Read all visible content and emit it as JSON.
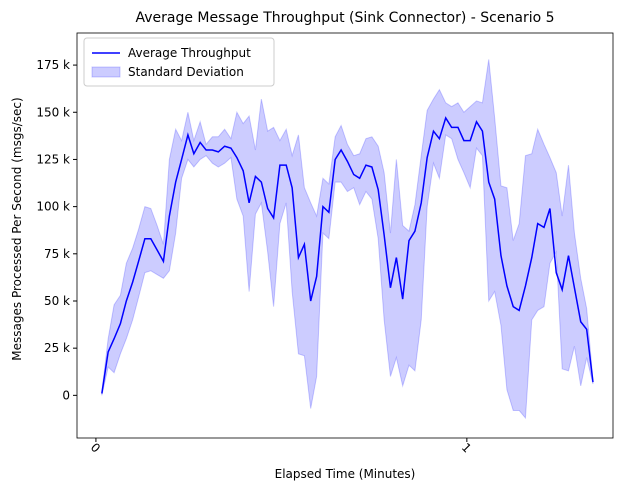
{
  "chart_data": {
    "type": "line_band",
    "title": "Average Message Throughput (Sink Connector) - Scenario 5",
    "x_label": "Elapsed Time (Minutes)",
    "y_label": "Messages Processed Per Second (msgs/sec)",
    "x": [
      0.016,
      0.033,
      0.049,
      0.066,
      0.082,
      0.099,
      0.115,
      0.132,
      0.148,
      0.165,
      0.182,
      0.198,
      0.215,
      0.231,
      0.248,
      0.264,
      0.281,
      0.297,
      0.314,
      0.33,
      0.347,
      0.364,
      0.38,
      0.397,
      0.413,
      0.43,
      0.446,
      0.463,
      0.479,
      0.496,
      0.513,
      0.529,
      0.546,
      0.562,
      0.579,
      0.595,
      0.612,
      0.628,
      0.645,
      0.661,
      0.678,
      0.695,
      0.711,
      0.728,
      0.744,
      0.761,
      0.777,
      0.794,
      0.81,
      0.827,
      0.844,
      0.86,
      0.877,
      0.893,
      0.91,
      0.926,
      0.943,
      0.959,
      0.976,
      0.992,
      1.009,
      1.026,
      1.042,
      1.059,
      1.075,
      1.092,
      1.108,
      1.125,
      1.141,
      1.158,
      1.175,
      1.191,
      1.208,
      1.224,
      1.241,
      1.257,
      1.274,
      1.29,
      1.307,
      1.323,
      1.34
    ],
    "series": [
      {
        "name": "Average Throughput",
        "color": "#0000ff",
        "values": [
          1000,
          23000,
          30000,
          38000,
          50000,
          60000,
          71000,
          83000,
          83000,
          77000,
          71000,
          95000,
          113000,
          125000,
          138000,
          128000,
          134000,
          130000,
          130000,
          129000,
          132000,
          131000,
          126000,
          119000,
          102000,
          116000,
          113000,
          99000,
          94000,
          122000,
          122000,
          110000,
          73000,
          80000,
          50000,
          63000,
          100000,
          97000,
          125000,
          130000,
          124000,
          117000,
          115000,
          122000,
          121000,
          109000,
          85000,
          57000,
          73000,
          51000,
          82000,
          87000,
          102000,
          126000,
          140000,
          136000,
          147000,
          142000,
          142000,
          135000,
          135000,
          145000,
          140000,
          113000,
          104000,
          74000,
          58000,
          47000,
          45000,
          58000,
          73000,
          91000,
          89000,
          99000,
          65000,
          56000,
          74000,
          57000,
          39000,
          35000,
          7000
        ]
      },
      {
        "name": "Standard Deviation",
        "color": "#0000ff",
        "upper": [
          2000,
          30000,
          48000,
          53000,
          70000,
          78000,
          88000,
          100000,
          99000,
          90000,
          80000,
          125000,
          141000,
          135000,
          150000,
          135000,
          145000,
          133000,
          137000,
          137000,
          141000,
          136000,
          150000,
          144000,
          148000,
          130000,
          157000,
          140000,
          142000,
          135000,
          141000,
          127000,
          138000,
          110000,
          102000,
          95000,
          115000,
          112000,
          137000,
          143000,
          133000,
          127000,
          128000,
          136000,
          137000,
          132000,
          118000,
          86000,
          125000,
          90000,
          87000,
          101000,
          127000,
          151000,
          157000,
          162000,
          155000,
          153000,
          155000,
          150000,
          153000,
          156000,
          155000,
          178000,
          147000,
          111000,
          110000,
          82000,
          91000,
          127000,
          128000,
          141000,
          133000,
          126000,
          118000,
          95000,
          122000,
          86000,
          62000,
          46000,
          8000
        ],
        "lower": [
          0,
          15000,
          12000,
          22000,
          30000,
          40000,
          52000,
          65000,
          66000,
          64000,
          62000,
          66000,
          86000,
          115000,
          125000,
          121000,
          125000,
          127000,
          123000,
          121000,
          123000,
          126000,
          104000,
          95000,
          55000,
          96000,
          102000,
          76000,
          47000,
          91000,
          102000,
          55000,
          22000,
          21000,
          -7000,
          10000,
          86000,
          83000,
          113000,
          113000,
          108000,
          110000,
          101000,
          108000,
          104000,
          83000,
          40000,
          10000,
          20000,
          5000,
          16000,
          13000,
          40000,
          100000,
          123000,
          115000,
          138000,
          136000,
          125000,
          118000,
          110000,
          131000,
          127000,
          50000,
          55000,
          37000,
          3000,
          -8000,
          -8000,
          -12000,
          40000,
          45000,
          47000,
          70000,
          76000,
          14000,
          13000,
          26000,
          5000,
          20000,
          6000
        ]
      }
    ],
    "xlim": [
      -0.051,
      1.394
    ],
    "ylim": [
      -22600,
      192000
    ],
    "xticks": [
      0,
      1
    ],
    "yticks": [
      0,
      {
        "value": 25000,
        "label": "25 k"
      },
      {
        "value": 50000,
        "label": "50 k"
      },
      {
        "value": 75000,
        "label": "75 k"
      },
      {
        "value": 100000,
        "label": "100 k"
      },
      {
        "value": 125000,
        "label": "125 k"
      },
      {
        "value": 150000,
        "label": "150 k"
      },
      {
        "value": 175000,
        "label": "175 k"
      }
    ],
    "legend": "upper left"
  }
}
